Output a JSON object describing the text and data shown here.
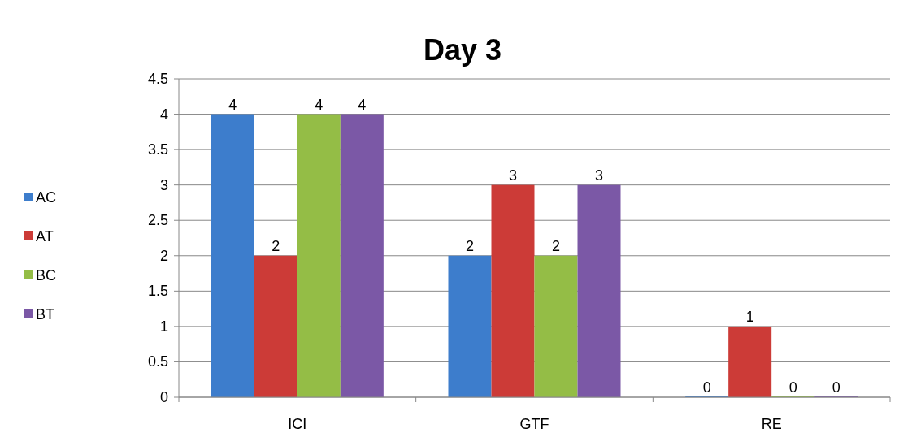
{
  "chart_data": {
    "type": "bar",
    "title": "Day 3",
    "categories": [
      "ICI",
      "GTF",
      "RE"
    ],
    "series": [
      {
        "name": "AC",
        "color": "#3d7dcc",
        "values": [
          4,
          2,
          0
        ]
      },
      {
        "name": "AT",
        "color": "#cc3b37",
        "values": [
          2,
          3,
          1
        ]
      },
      {
        "name": "BC",
        "color": "#94bd46",
        "values": [
          4,
          2,
          0
        ]
      },
      {
        "name": "BT",
        "color": "#7b58a6",
        "values": [
          4,
          3,
          0
        ]
      }
    ],
    "ylim": [
      0,
      4.5
    ],
    "yticks": [
      0,
      0.5,
      1,
      1.5,
      2,
      2.5,
      3,
      3.5,
      4,
      4.5
    ],
    "grid": "y",
    "legend": "left",
    "data_labels": true
  }
}
